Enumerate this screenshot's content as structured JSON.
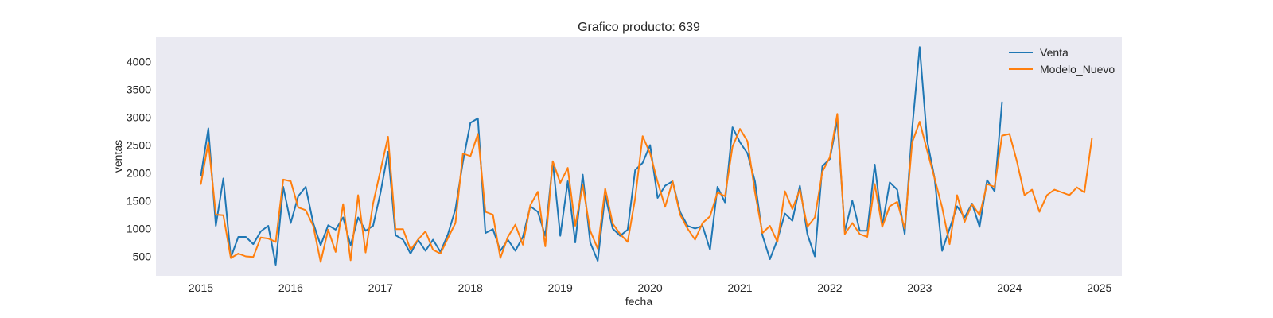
{
  "chart_data": {
    "type": "line",
    "title": "Grafico producto: 639",
    "xlabel": "fecha",
    "ylabel": "ventas",
    "x_ticks": [
      "2015",
      "2016",
      "2017",
      "2018",
      "2019",
      "2020",
      "2021",
      "2022",
      "2023",
      "2024",
      "2025"
    ],
    "y_ticks": [
      500,
      1000,
      1500,
      2000,
      2500,
      3000,
      3500,
      4000
    ],
    "xlim": [
      "2014-07",
      "2025-04"
    ],
    "ylim": [
      150,
      4450
    ],
    "grid": false,
    "legend_position": "top-right",
    "background": "#eaeaf2",
    "series": [
      {
        "name": "Venta",
        "color": "#1f77b4",
        "start": "2015-01",
        "freq": "monthly",
        "values": [
          1950,
          2800,
          1050,
          1900,
          480,
          850,
          850,
          720,
          950,
          1050,
          350,
          1750,
          1100,
          1580,
          1750,
          1100,
          700,
          1060,
          980,
          1200,
          700,
          1200,
          960,
          1050,
          1650,
          2380,
          880,
          800,
          550,
          800,
          600,
          800,
          580,
          900,
          1350,
          2200,
          2900,
          2980,
          920,
          990,
          600,
          800,
          600,
          850,
          1400,
          1300,
          870,
          2200,
          870,
          1850,
          750,
          1970,
          750,
          420,
          1600,
          1000,
          870,
          980,
          2050,
          2180,
          2500,
          1550,
          1770,
          1850,
          1300,
          1050,
          1000,
          1050,
          620,
          1750,
          1470,
          2820,
          2550,
          2350,
          1850,
          880,
          450,
          800,
          1270,
          1140,
          1770,
          900,
          500,
          2120,
          2250,
          2950,
          950,
          1500,
          960,
          960,
          2150,
          1050,
          1830,
          1700,
          900,
          2800,
          4260,
          2580,
          1900,
          600,
          1000,
          1400,
          1200,
          1450,
          1030,
          1870,
          1670,
          3270
        ]
      },
      {
        "name": "Modelo_Nuevo",
        "color": "#ff7f0e",
        "start": "2015-01",
        "freq": "monthly",
        "values": [
          1800,
          2550,
          1250,
          1240,
          470,
          550,
          500,
          490,
          840,
          820,
          760,
          1880,
          1850,
          1380,
          1330,
          1050,
          400,
          980,
          580,
          1440,
          430,
          1600,
          570,
          1450,
          2050,
          2650,
          990,
          990,
          620,
          800,
          950,
          620,
          550,
          830,
          1100,
          2350,
          2300,
          2700,
          1300,
          1250,
          470,
          850,
          1070,
          710,
          1420,
          1660,
          680,
          2210,
          1820,
          2090,
          1050,
          1780,
          960,
          640,
          1720,
          1090,
          900,
          760,
          1540,
          2660,
          2350,
          1840,
          1390,
          1850,
          1250,
          1000,
          800,
          1100,
          1220,
          1650,
          1580,
          2470,
          2790,
          2570,
          1650,
          920,
          1050,
          760,
          1670,
          1350,
          1700,
          1030,
          1200,
          2020,
          2280,
          3060,
          900,
          1100,
          900,
          850,
          1800,
          1030,
          1400,
          1480,
          1000,
          2550,
          2920,
          2400,
          1900,
          1380,
          720,
          1600,
          1120,
          1440,
          1240,
          1800,
          1750,
          2670,
          2700,
          2200,
          1600,
          1700,
          1300,
          1600,
          1700,
          1650,
          1600,
          1740,
          1650,
          2620
        ]
      }
    ]
  }
}
